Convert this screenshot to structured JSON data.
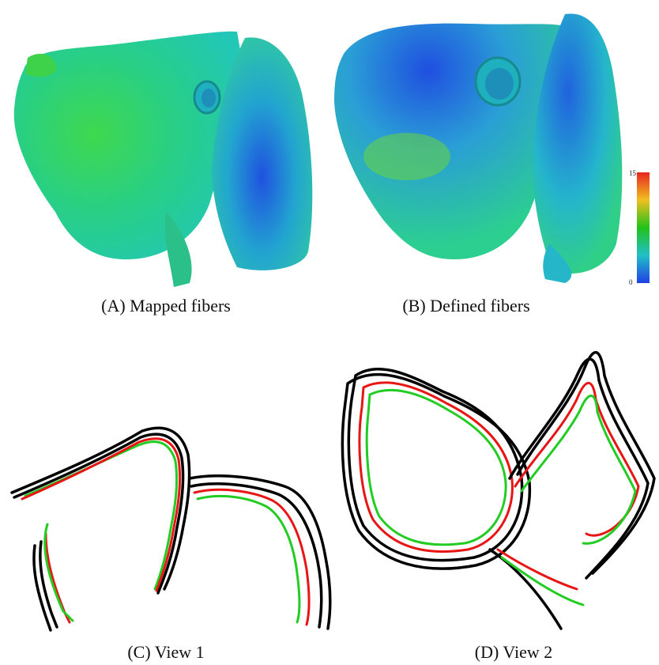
{
  "figure": {
    "panels": [
      {
        "id": "A",
        "caption": "(A) Mapped fibers"
      },
      {
        "id": "B",
        "caption": "(B) Defined fibers"
      },
      {
        "id": "C",
        "caption": "(C) View 1"
      },
      {
        "id": "D",
        "caption": "(D) View 2"
      }
    ],
    "colorbar": {
      "max": "15",
      "min": "0",
      "colors": [
        "#e8251f",
        "#f0c020",
        "#21c21a",
        "#21c0c8",
        "#1f3fe6"
      ]
    },
    "contour_colors": {
      "outer": "#000000",
      "mapped": "#e81515",
      "defined": "#22cc22"
    }
  }
}
